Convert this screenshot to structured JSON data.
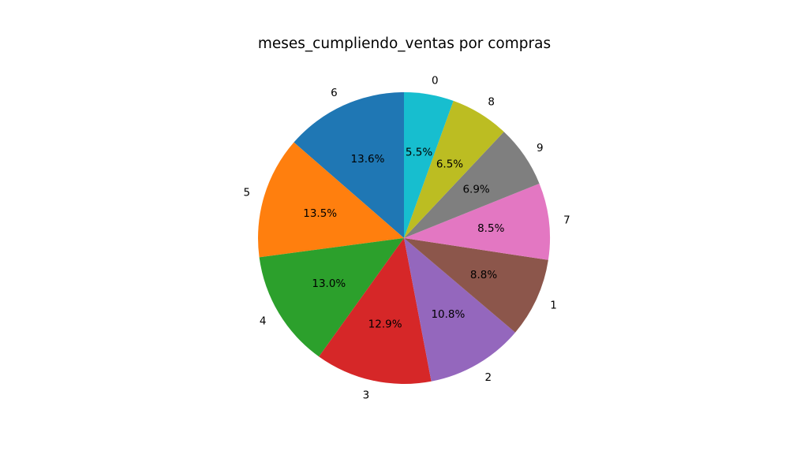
{
  "chart_data": {
    "type": "pie",
    "title": "meses_cumpliendo_ventas por compras",
    "start_angle_deg": 90,
    "direction": "counterclockwise",
    "slices": [
      {
        "label": "6",
        "value": 13.6,
        "pct": "13.6%",
        "color": "#1f77b4"
      },
      {
        "label": "5",
        "value": 13.5,
        "pct": "13.5%",
        "color": "#ff7f0e"
      },
      {
        "label": "4",
        "value": 13.0,
        "pct": "13.0%",
        "color": "#2ca02c"
      },
      {
        "label": "3",
        "value": 12.9,
        "pct": "12.9%",
        "color": "#d62728"
      },
      {
        "label": "2",
        "value": 10.8,
        "pct": "10.8%",
        "color": "#9467bd"
      },
      {
        "label": "1",
        "value": 8.8,
        "pct": "8.8%",
        "color": "#8c564b"
      },
      {
        "label": "7",
        "value": 8.5,
        "pct": "8.5%",
        "color": "#e377c2"
      },
      {
        "label": "9",
        "value": 6.9,
        "pct": "6.9%",
        "color": "#7f7f7f"
      },
      {
        "label": "8",
        "value": 6.5,
        "pct": "6.5%",
        "color": "#bcbd22"
      },
      {
        "label": "0",
        "value": 5.5,
        "pct": "5.5%",
        "color": "#17becf"
      }
    ]
  }
}
